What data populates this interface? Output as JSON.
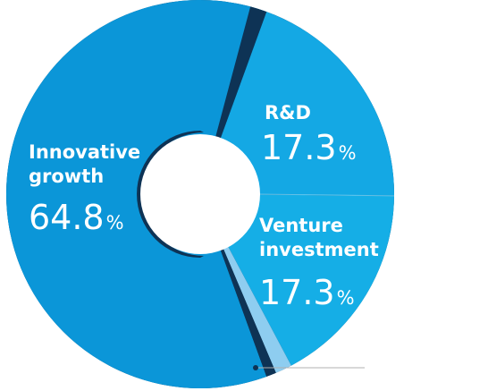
{
  "chart_data": {
    "type": "pie",
    "title": "",
    "donut": true,
    "slices": [
      {
        "name_lines": [
          "Innovative",
          "growth"
        ],
        "value": 64.8,
        "value_label": "64.8",
        "unit": "%",
        "color": "#0b96d8"
      },
      {
        "name_lines": [
          "R&D"
        ],
        "value": 17.3,
        "value_label": "17.3",
        "unit": "%",
        "color": "#14a8e4"
      },
      {
        "name_lines": [
          "Venture",
          "investment"
        ],
        "value": 17.3,
        "value_label": "17.3",
        "unit": "%",
        "color": "#15aee6"
      }
    ],
    "unlabeled_small_slice": {
      "color": "#8ecdf0"
    },
    "separator_color": "#0e3355",
    "leader_line_color": "#b0b0b0"
  }
}
